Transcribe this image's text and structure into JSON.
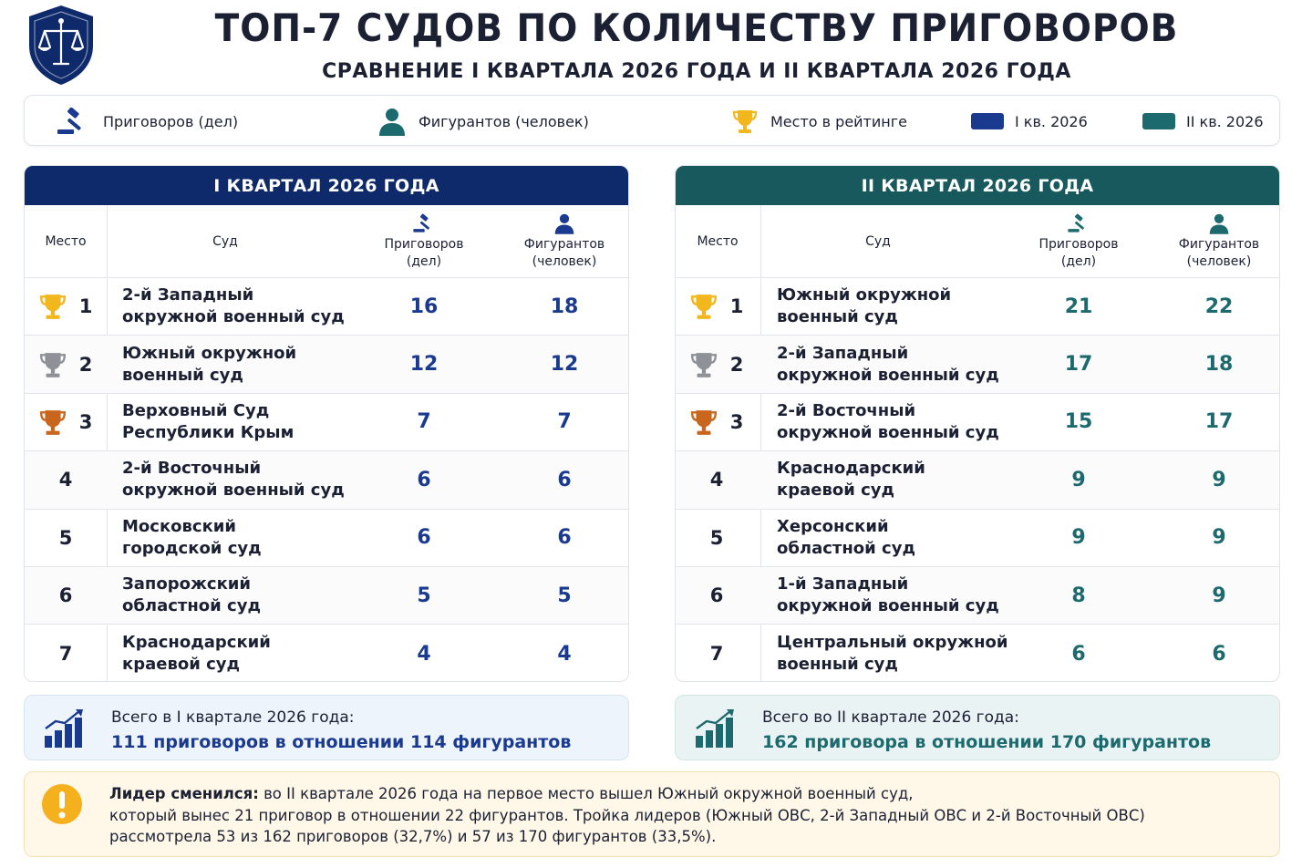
{
  "header": {
    "title": "ТОП-7 СУДОВ ПО КОЛИЧЕСТВУ ПРИГОВОРОВ",
    "subtitle": "СРАВНЕНИЕ I КВАРТАЛА 2026 ГОДА И II КВАРТАЛА 2026 ГОДА",
    "logo_icon": "scales-shield-icon"
  },
  "legend": {
    "verdicts": "Приговоров (дел)",
    "defendants": "Фигурантов (человек)",
    "rank": "Место в рейтинге",
    "q1": "I кв. 2026",
    "q2": "II кв. 2026"
  },
  "colors": {
    "q1": "#1a3a8f",
    "q2": "#1d6a6e",
    "navy": "#0e2a6b",
    "teal_dark": "#17595c",
    "gold": "#f2b71c",
    "silver": "#8e9298",
    "bronze": "#c9661e",
    "warn": "#f5b01e"
  },
  "columns": {
    "place": "Место",
    "court": "Суд",
    "verdicts_line1": "Приговоров",
    "verdicts_line2": "(дел)",
    "defendants_line1": "Фигурантов",
    "defendants_line2": "(человек)"
  },
  "q1": {
    "heading": "I КВАРТАЛ 2026 ГОДА",
    "rows": [
      {
        "place": "1",
        "court1": "2-й Западный",
        "court2": "окружной военный суд",
        "verdicts": "16",
        "defendants": "18",
        "trophy": "gold"
      },
      {
        "place": "2",
        "court1": "Южный окружной",
        "court2": "военный суд",
        "verdicts": "12",
        "defendants": "12",
        "trophy": "silver"
      },
      {
        "place": "3",
        "court1": "Верховный Суд",
        "court2": "Республики Крым",
        "verdicts": "7",
        "defendants": "7",
        "trophy": "bronze"
      },
      {
        "place": "4",
        "court1": "2-й Восточный",
        "court2": "окружной военный суд",
        "verdicts": "6",
        "defendants": "6"
      },
      {
        "place": "5",
        "court1": "Московский",
        "court2": "городской суд",
        "verdicts": "6",
        "defendants": "6"
      },
      {
        "place": "6",
        "court1": "Запорожский",
        "court2": "областной суд",
        "verdicts": "5",
        "defendants": "5"
      },
      {
        "place": "7",
        "court1": "Краснодарский",
        "court2": "краевой суд",
        "verdicts": "4",
        "defendants": "4"
      }
    ],
    "total_label": "Всего в I квартале 2026 года:",
    "total_value": "111 приговоров в отношении 114 фигурантов"
  },
  "q2": {
    "heading": "II КВАРТАЛ 2026 ГОДА",
    "rows": [
      {
        "place": "1",
        "court1": "Южный окружной",
        "court2": "военный суд",
        "verdicts": "21",
        "defendants": "22",
        "trophy": "gold"
      },
      {
        "place": "2",
        "court1": "2-й Западный",
        "court2": "окружной военный суд",
        "verdicts": "17",
        "defendants": "18",
        "trophy": "silver"
      },
      {
        "place": "3",
        "court1": "2-й Восточный",
        "court2": "окружной военный суд",
        "verdicts": "15",
        "defendants": "17",
        "trophy": "bronze"
      },
      {
        "place": "4",
        "court1": "Краснодарский",
        "court2": "краевой суд",
        "verdicts": "9",
        "defendants": "9"
      },
      {
        "place": "5",
        "court1": "Херсонский",
        "court2": "областной суд",
        "verdicts": "9",
        "defendants": "9"
      },
      {
        "place": "6",
        "court1": "1-й Западный",
        "court2": "окружной военный суд",
        "verdicts": "8",
        "defendants": "9"
      },
      {
        "place": "7",
        "court1": "Центральный окружной",
        "court2": "военный суд",
        "verdicts": "6",
        "defendants": "6"
      }
    ],
    "total_label": "Всего во II квартале 2026 года:",
    "total_value": "162 приговора в отношении 170 фигурантов"
  },
  "note": {
    "lead": "Лидер сменился:",
    "line1": " во II квартале 2026 года на первое место вышел Южный окружной военный суд,",
    "line2": "который вынес 21 приговор в отношении 22 фигурантов. Тройка лидеров (Южный ОВС, 2-й Западный ОВС и 2-й Восточный ОВС)",
    "line3": "рассмотрела 53 из 162 приговоров (32,7%) и 57 из 170 фигурантов (33,5%)."
  }
}
